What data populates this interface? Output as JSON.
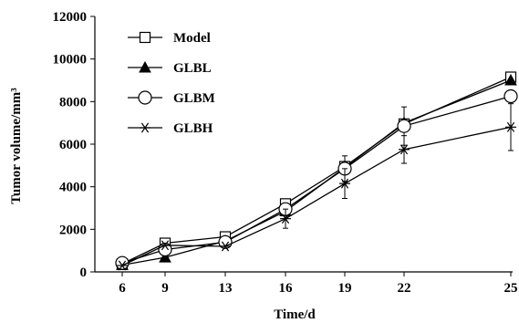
{
  "chart_data": {
    "type": "line",
    "xlabel": "Time/d",
    "ylabel": "Tumor volume/mm³",
    "x": [
      "6",
      "9",
      "13",
      "16",
      "19",
      "22",
      "25"
    ],
    "ylim": [
      0,
      12000
    ],
    "yticks": [
      0,
      2000,
      4000,
      6000,
      8000,
      10000,
      12000
    ],
    "legend_position": "upper-left",
    "grid": false,
    "series": [
      {
        "name": "Model",
        "marker": "open-square",
        "values": [
          380,
          1350,
          1650,
          3200,
          4950,
          6950,
          9150
        ],
        "errors": [
          0,
          0,
          0,
          0,
          0,
          0,
          0
        ]
      },
      {
        "name": "GLBL",
        "marker": "filled-triangle",
        "values": [
          320,
          680,
          1450,
          2850,
          4900,
          7000,
          9000
        ],
        "errors": [
          0,
          0,
          0,
          0,
          0,
          0,
          0
        ]
      },
      {
        "name": "GLBM",
        "marker": "open-circle",
        "values": [
          420,
          1050,
          1400,
          2950,
          4850,
          6850,
          8250
        ],
        "errors": [
          0,
          0,
          0,
          0,
          600,
          900,
          0
        ]
      },
      {
        "name": "GLBH",
        "marker": "asterisk",
        "values": [
          300,
          1250,
          1200,
          2500,
          4150,
          5750,
          6800
        ],
        "errors": [
          0,
          0,
          0,
          450,
          700,
          650,
          1100
        ]
      }
    ]
  }
}
